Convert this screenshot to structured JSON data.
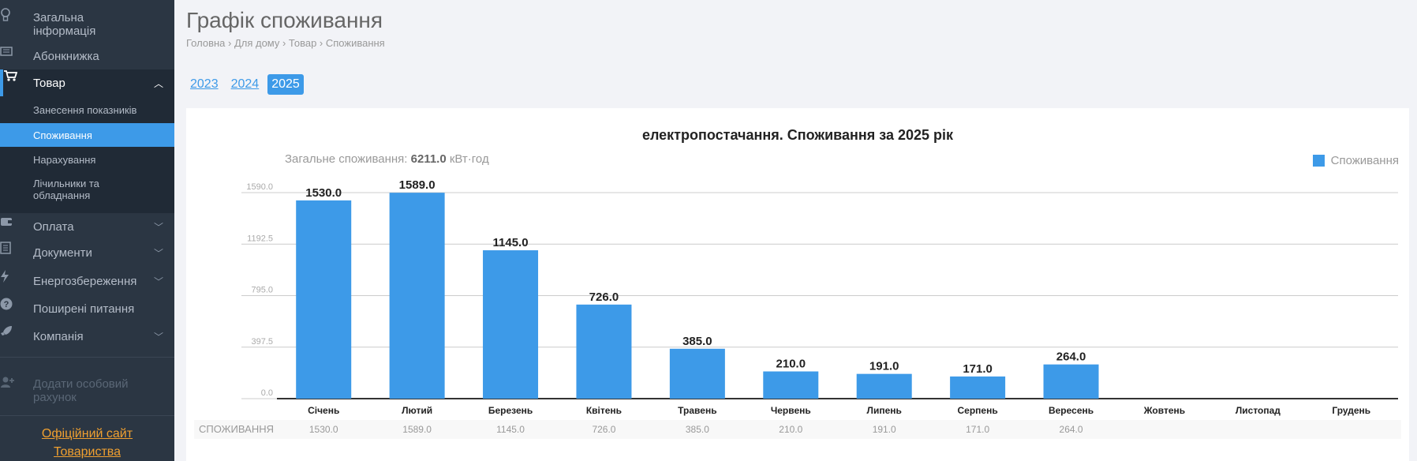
{
  "sidebar": {
    "items": [
      {
        "label_line1": "Загальна",
        "label_line2": "інформація",
        "icon": "lightbulb-icon"
      },
      {
        "label": "Абонкнижка",
        "icon": "book-icon"
      },
      {
        "label": "Товар",
        "icon": "cart-icon"
      },
      {
        "label": "Оплата",
        "icon": "wallet-icon"
      },
      {
        "label": "Документи",
        "icon": "document-icon"
      },
      {
        "label": "Енергозбереження",
        "icon": "bolt-icon"
      },
      {
        "label": "Поширені питання",
        "icon": "question-icon"
      },
      {
        "label": "Компанія",
        "icon": "rocket-icon"
      }
    ],
    "subitems": [
      {
        "label": "Занесення показників"
      },
      {
        "label": "Споживання"
      },
      {
        "label": "Нарахування"
      },
      {
        "label_line1": "Лічильники та",
        "label_line2": "обладнання"
      }
    ],
    "add_account_line1": "Додати особовий",
    "add_account_line2": "рахунок",
    "official_line1": "Офіційний сайт",
    "official_line2": "Товариства"
  },
  "header": {
    "title": "Графік споживання",
    "breadcrumb": "Головна › Для дому › Товар › Споживання"
  },
  "years": [
    "2023",
    "2024",
    "2025"
  ],
  "active_year": "2025",
  "chart_data": {
    "type": "bar",
    "title": "електропостачання. Споживання за 2025 рік",
    "total_label": "Загальне споживання: ",
    "total_value": "6211.0",
    "total_unit": " кВт·год",
    "legend": "Споживання",
    "ylim": [
      0,
      1590
    ],
    "yticks": [
      "0.0",
      "397.5",
      "795.0",
      "1192.5",
      "1590.0"
    ],
    "categories": [
      "Січень",
      "Лютий",
      "Березень",
      "Квітень",
      "Травень",
      "Червень",
      "Липень",
      "Серпень",
      "Вересень",
      "Жовтень",
      "Листопад",
      "Грудень"
    ],
    "values": [
      1530.0,
      1589.0,
      1145.0,
      726.0,
      385.0,
      210.0,
      191.0,
      171.0,
      264.0,
      null,
      null,
      null
    ],
    "value_labels": [
      "1530.0",
      "1589.0",
      "1145.0",
      "726.0",
      "385.0",
      "210.0",
      "191.0",
      "171.0",
      "264.0",
      "",
      "",
      ""
    ],
    "table_row_label": "СПОЖИВАННЯ",
    "color": "#3d9ae8"
  }
}
